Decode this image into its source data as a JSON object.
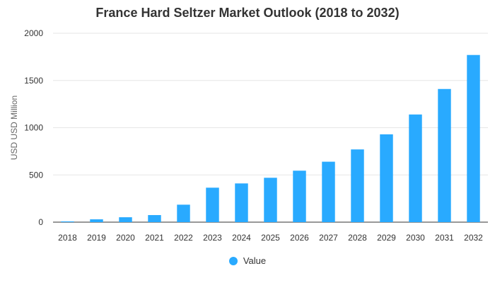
{
  "colors": {
    "bar": "#29aaff",
    "grid": "#e6e6e6",
    "axis": "#333333"
  },
  "chart_data": {
    "type": "bar",
    "title": "France Hard Seltzer Market Outlook (2018 to 2032)",
    "xlabel": "",
    "ylabel": "USD USD Million",
    "ylim": [
      0,
      2000
    ],
    "yticks": [
      0,
      500,
      1000,
      1500,
      2000
    ],
    "grid": true,
    "legend_position": "bottom",
    "categories": [
      "2018",
      "2019",
      "2020",
      "2021",
      "2022",
      "2023",
      "2024",
      "2025",
      "2026",
      "2027",
      "2028",
      "2029",
      "2030",
      "2031",
      "2032"
    ],
    "series": [
      {
        "name": "Value",
        "values": [
          8,
          30,
          52,
          75,
          185,
          365,
          410,
          470,
          545,
          640,
          770,
          930,
          1140,
          1410,
          1770
        ]
      }
    ]
  }
}
